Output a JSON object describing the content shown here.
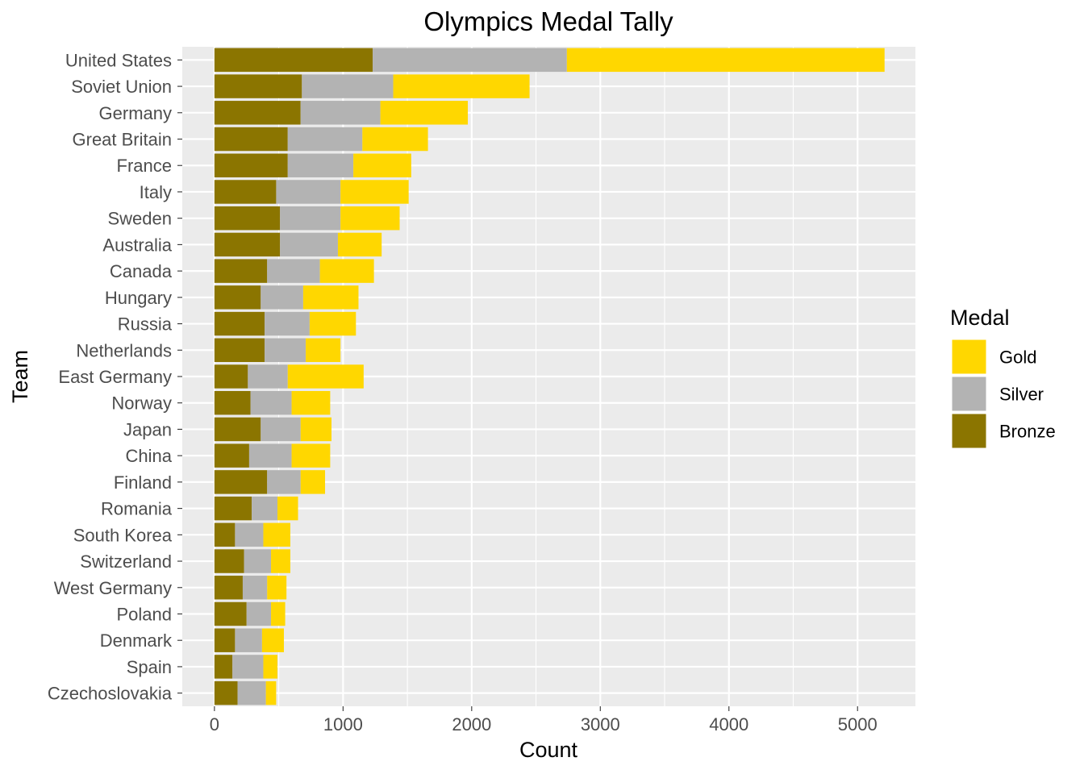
{
  "chart_data": {
    "type": "bar",
    "orientation": "horizontal",
    "stacked": true,
    "title": "Olympics Medal Tally",
    "xlabel": "Count",
    "ylabel": "Team",
    "xlim": [
      -250,
      5450
    ],
    "x_ticks": [
      0,
      1000,
      2000,
      3000,
      4000,
      5000
    ],
    "grid": true,
    "legend": {
      "title": "Medal",
      "position": "right"
    },
    "categories": [
      "United States",
      "Soviet Union",
      "Germany",
      "Great Britain",
      "France",
      "Italy",
      "Sweden",
      "Australia",
      "Canada",
      "Hungary",
      "Russia",
      "Netherlands",
      "East Germany",
      "Norway",
      "Japan",
      "China",
      "Finland",
      "Romania",
      "South Korea",
      "Switzerland",
      "West Germany",
      "Poland",
      "Denmark",
      "Spain",
      "Czechoslovakia"
    ],
    "series": [
      {
        "name": "Gold",
        "color": "#FFD700",
        "values": [
          2470,
          1060,
          680,
          510,
          450,
          530,
          460,
          340,
          420,
          430,
          360,
          270,
          590,
          300,
          240,
          300,
          190,
          160,
          210,
          150,
          150,
          110,
          170,
          110,
          80
        ]
      },
      {
        "name": "Silver",
        "color": "#B3B3B3",
        "values": [
          1510,
          710,
          620,
          580,
          510,
          500,
          470,
          450,
          410,
          330,
          350,
          320,
          310,
          320,
          310,
          330,
          260,
          200,
          220,
          210,
          190,
          190,
          210,
          240,
          220
        ]
      },
      {
        "name": "Bronze",
        "color": "#8B7500",
        "values": [
          1230,
          680,
          670,
          570,
          570,
          480,
          510,
          510,
          410,
          360,
          390,
          390,
          260,
          280,
          360,
          270,
          410,
          290,
          160,
          230,
          220,
          250,
          160,
          140,
          180
        ]
      }
    ]
  }
}
